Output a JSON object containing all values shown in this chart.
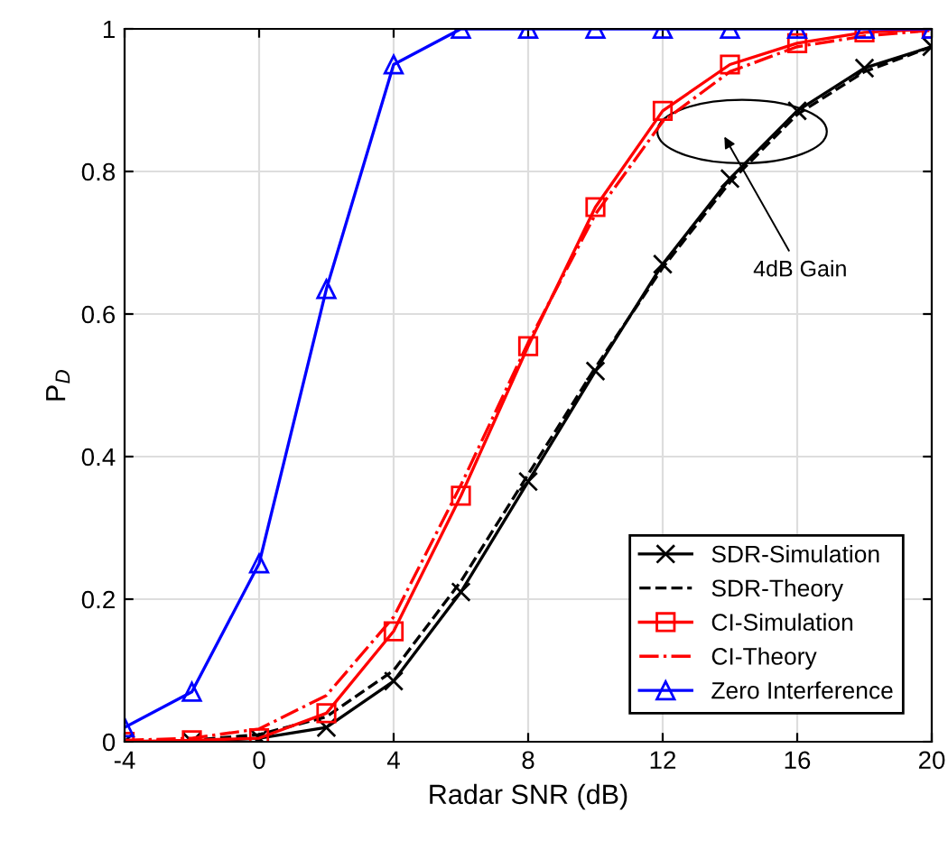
{
  "chart_data": {
    "type": "line",
    "xlabel": "Radar SNR (dB)",
    "ylabel": "P$_{D}$",
    "x": [
      -4,
      -2,
      0,
      2,
      4,
      6,
      8,
      10,
      12,
      14,
      16,
      18,
      20
    ],
    "series": [
      {
        "name": "SDR-Simulation",
        "color": "#000000",
        "marker": "cross",
        "line_style": "solid",
        "values": [
          0,
          0,
          0.005,
          0.02,
          0.085,
          0.21,
          0.365,
          0.52,
          0.67,
          0.79,
          0.885,
          0.945,
          0.975
        ]
      },
      {
        "name": "SDR-Theory",
        "color": "#000000",
        "marker": "none",
        "line_style": "dashed",
        "values": [
          0,
          0.002,
          0.01,
          0.035,
          0.1,
          0.225,
          0.375,
          0.525,
          0.665,
          0.785,
          0.88,
          0.94,
          0.975
        ]
      },
      {
        "name": "CI-Simulation",
        "color": "#ff0000",
        "marker": "square",
        "line_style": "solid",
        "values": [
          0,
          0.002,
          0.005,
          0.04,
          0.155,
          0.345,
          0.555,
          0.75,
          0.885,
          0.95,
          0.98,
          0.995,
          1.0
        ]
      },
      {
        "name": "CI-Theory",
        "color": "#ff0000",
        "marker": "none",
        "line_style": "dashdot",
        "values": [
          0.002,
          0.005,
          0.018,
          0.065,
          0.175,
          0.36,
          0.56,
          0.74,
          0.87,
          0.94,
          0.975,
          0.99,
          0.998
        ]
      },
      {
        "name": "Zero Interference",
        "color": "#0000ff",
        "marker": "triangle",
        "line_style": "solid",
        "values": [
          0.02,
          0.07,
          0.25,
          0.635,
          0.95,
          1,
          1,
          1,
          1,
          1,
          1,
          1,
          1
        ]
      }
    ],
    "xlim": [
      -4,
      20
    ],
    "ylim": [
      0,
      1
    ],
    "xticks": [
      -4,
      0,
      4,
      8,
      12,
      16,
      20
    ],
    "yticks": [
      0,
      0.2,
      0.4,
      0.6,
      0.8,
      1
    ],
    "grid": true,
    "legend": "bottom right",
    "annotations": [
      "4dB Gain"
    ]
  }
}
